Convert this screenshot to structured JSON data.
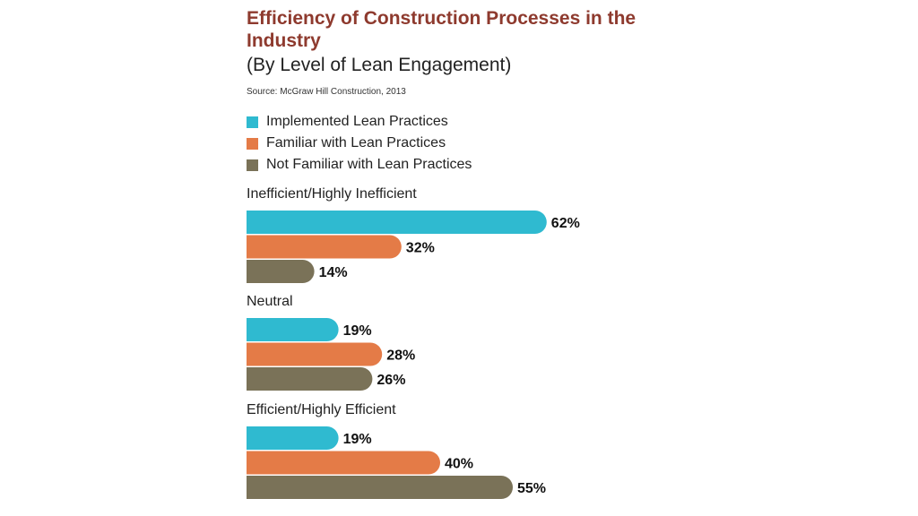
{
  "title": "Efficiency of Construction Processes in the Industry",
  "subtitle": "(By Level of Lean Engagement)",
  "source": "Source: McGraw Hill Construction, 2013",
  "legend": [
    {
      "label": "Implemented Lean Practices",
      "color": "#2fbad0"
    },
    {
      "label": "Familiar with Lean Practices",
      "color": "#e47b47"
    },
    {
      "label": "Not Familiar with Lean Practices",
      "color": "#7a7258"
    }
  ],
  "chart_data": {
    "type": "bar",
    "orientation": "horizontal",
    "title": "Efficiency of Construction Processes in the Industry",
    "subtitle": "(By Level of Lean Engagement)",
    "categories": [
      "Inefficient/Highly Inefficient",
      "Neutral",
      "Efficient/Highly Efficient"
    ],
    "series": [
      {
        "name": "Implemented Lean Practices",
        "color": "#2fbad0",
        "values": [
          62,
          19,
          19
        ],
        "labels": [
          "62%",
          "19%",
          "19%"
        ]
      },
      {
        "name": "Familiar with Lean Practices",
        "color": "#e47b47",
        "values": [
          32,
          28,
          40
        ],
        "labels": [
          "32%",
          "28%",
          "40%"
        ]
      },
      {
        "name": "Not Familiar with Lean Practices",
        "color": "#7a7258",
        "values": [
          14,
          26,
          55
        ],
        "labels": [
          "14%",
          "26%",
          "55%"
        ]
      }
    ],
    "xlim": [
      0,
      100
    ],
    "unit": "%",
    "grid": false,
    "legend_position": "top-left"
  }
}
